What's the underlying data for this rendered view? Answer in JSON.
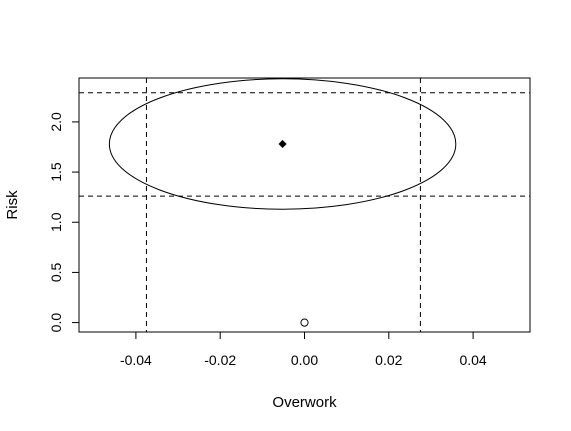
{
  "chart_data": {
    "type": "scatter",
    "title": "",
    "xlabel": "Overwork",
    "ylabel": "Risk",
    "xlim": [
      -0.0535,
      0.0535
    ],
    "ylim": [
      -0.0938,
      2.4375
    ],
    "x_ticks": [
      "-0.04",
      "-0.02",
      "0.00",
      "0.02",
      "0.04"
    ],
    "x_tick_values": [
      -0.04,
      -0.02,
      0.0,
      0.02,
      0.04
    ],
    "y_ticks": [
      "0.0",
      "0.5",
      "1.0",
      "1.5",
      "2.0"
    ],
    "y_tick_values": [
      0.0,
      0.5,
      1.0,
      1.5,
      2.0
    ],
    "points": [
      {
        "x": -0.0052,
        "y": 1.78,
        "marker": "filled-diamond"
      },
      {
        "x": 0.0,
        "y": 0.0,
        "marker": "open-circle"
      }
    ],
    "ellipse": {
      "cx": -0.0052,
      "cy": 1.78,
      "rx": 0.0411,
      "ry": 0.65
    },
    "reference_lines": {
      "vertical": [
        -0.0375,
        0.0275
      ],
      "horizontal": [
        1.26,
        2.29
      ]
    },
    "grid": false,
    "legend": "none"
  }
}
